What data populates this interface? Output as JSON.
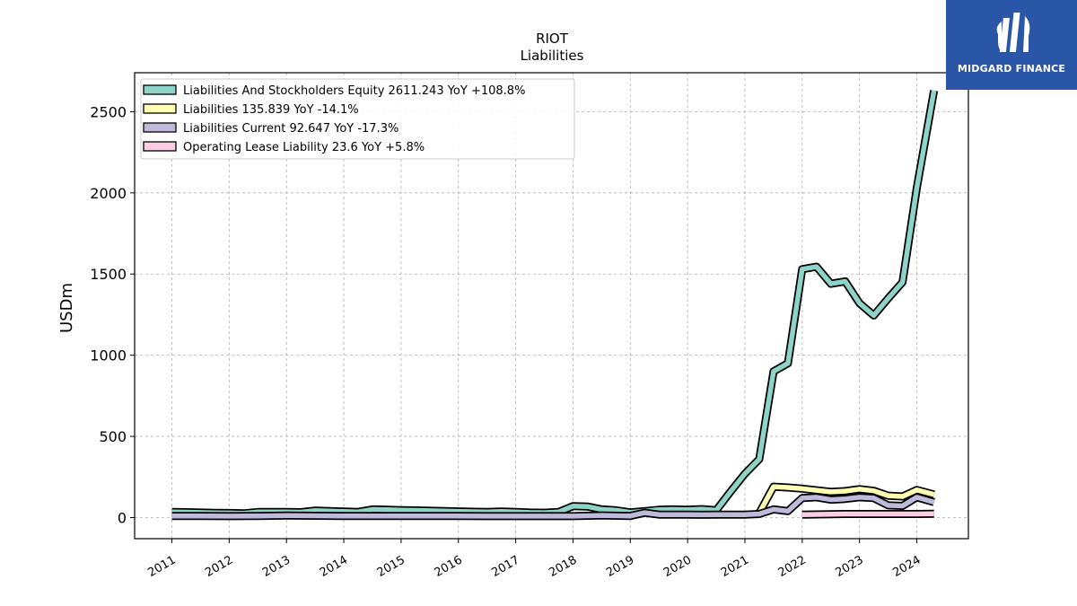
{
  "logo": {
    "text": "MIDGARD FINANCE"
  },
  "chart_data": {
    "type": "line",
    "title": "RIOT",
    "subtitle": "Liabilities",
    "ylabel": "USDm",
    "xlabel": "",
    "xlim": [
      2010.35,
      2024.9
    ],
    "ylim": [
      -130,
      2740
    ],
    "xticks": [
      "2011",
      "2012",
      "2013",
      "2014",
      "2015",
      "2016",
      "2017",
      "2018",
      "2019",
      "2020",
      "2021",
      "2022",
      "2023",
      "2024"
    ],
    "yticks": [
      "0",
      "500",
      "1000",
      "1500",
      "2000",
      "2500"
    ],
    "grid": true,
    "legend_position": "top-left",
    "series": [
      {
        "name": "Liabilities And Stockholders Equity",
        "legend": "Liabilities And Stockholders Equity  2611.243 YoY +108.8%",
        "color": "#8dd3c7",
        "points": [
          [
            2011.0,
            35
          ],
          [
            2011.25,
            33
          ],
          [
            2011.5,
            31
          ],
          [
            2011.75,
            29
          ],
          [
            2012.0,
            28
          ],
          [
            2012.25,
            26
          ],
          [
            2012.5,
            34
          ],
          [
            2012.75,
            34
          ],
          [
            2013.0,
            35
          ],
          [
            2013.25,
            33
          ],
          [
            2013.5,
            43
          ],
          [
            2013.75,
            40
          ],
          [
            2014.0,
            37
          ],
          [
            2014.25,
            35
          ],
          [
            2014.5,
            50
          ],
          [
            2014.75,
            48
          ],
          [
            2015.0,
            46
          ],
          [
            2015.25,
            44
          ],
          [
            2015.5,
            42
          ],
          [
            2015.75,
            40
          ],
          [
            2016.0,
            38
          ],
          [
            2016.25,
            36
          ],
          [
            2016.5,
            35
          ],
          [
            2016.75,
            37
          ],
          [
            2017.0,
            35
          ],
          [
            2017.25,
            31
          ],
          [
            2017.5,
            30
          ],
          [
            2017.75,
            34
          ],
          [
            2018.0,
            70
          ],
          [
            2018.25,
            68
          ],
          [
            2018.5,
            50
          ],
          [
            2018.75,
            45
          ],
          [
            2019.0,
            32
          ],
          [
            2019.25,
            40
          ],
          [
            2019.5,
            48
          ],
          [
            2019.75,
            50
          ],
          [
            2020.0,
            48
          ],
          [
            2020.25,
            52
          ],
          [
            2020.5,
            45
          ],
          [
            2020.75,
            160
          ],
          [
            2021.0,
            270
          ],
          [
            2021.25,
            360
          ],
          [
            2021.5,
            900
          ],
          [
            2021.75,
            950
          ],
          [
            2022.0,
            1530
          ],
          [
            2022.25,
            1545
          ],
          [
            2022.5,
            1440
          ],
          [
            2022.75,
            1455
          ],
          [
            2023.0,
            1320
          ],
          [
            2023.25,
            1245
          ],
          [
            2023.5,
            1350
          ],
          [
            2023.75,
            1450
          ],
          [
            2024.0,
            2030
          ],
          [
            2024.3,
            2630
          ]
        ]
      },
      {
        "name": "Liabilities",
        "legend": "Liabilities  135.839 YoY -14.1%",
        "color": "#ffffb3",
        "points": [
          [
            2021.25,
            28
          ],
          [
            2021.5,
            190
          ],
          [
            2021.75,
            185
          ],
          [
            2022.0,
            178
          ],
          [
            2022.25,
            168
          ],
          [
            2022.5,
            158
          ],
          [
            2022.75,
            163
          ],
          [
            2023.0,
            175
          ],
          [
            2023.25,
            165
          ],
          [
            2023.5,
            135
          ],
          [
            2023.75,
            130
          ],
          [
            2024.0,
            170
          ],
          [
            2024.3,
            142
          ]
        ]
      },
      {
        "name": "Liabilities Current",
        "legend": "Liabilities Current  92.647 YoY -17.3%",
        "color": "#bebada",
        "points": [
          [
            2011.0,
            10
          ],
          [
            2011.5,
            10
          ],
          [
            2012.0,
            9
          ],
          [
            2012.5,
            10
          ],
          [
            2013.0,
            12
          ],
          [
            2013.5,
            11
          ],
          [
            2014.0,
            10
          ],
          [
            2014.5,
            10
          ],
          [
            2015.0,
            10
          ],
          [
            2015.5,
            10
          ],
          [
            2016.0,
            10
          ],
          [
            2016.5,
            9
          ],
          [
            2017.0,
            9
          ],
          [
            2017.5,
            9
          ],
          [
            2018.0,
            9
          ],
          [
            2018.5,
            13
          ],
          [
            2019.0,
            10
          ],
          [
            2019.25,
            30
          ],
          [
            2019.5,
            18
          ],
          [
            2019.75,
            18
          ],
          [
            2020.0,
            18
          ],
          [
            2020.25,
            17
          ],
          [
            2020.5,
            18
          ],
          [
            2020.75,
            18
          ],
          [
            2021.0,
            18
          ],
          [
            2021.25,
            22
          ],
          [
            2021.5,
            50
          ],
          [
            2021.75,
            40
          ],
          [
            2022.0,
            120
          ],
          [
            2022.25,
            125
          ],
          [
            2022.5,
            110
          ],
          [
            2022.75,
            115
          ],
          [
            2023.0,
            125
          ],
          [
            2023.25,
            120
          ],
          [
            2023.5,
            75
          ],
          [
            2023.75,
            72
          ],
          [
            2024.0,
            125
          ],
          [
            2024.3,
            95
          ]
        ]
      },
      {
        "name": "Operating Lease Liability",
        "legend": "Operating Lease Liability  23.6 YoY +5.8%",
        "color": "#fccde5",
        "points": [
          [
            2022.0,
            18
          ],
          [
            2022.5,
            21
          ],
          [
            2022.75,
            22
          ],
          [
            2023.0,
            22
          ],
          [
            2023.5,
            22
          ],
          [
            2024.0,
            22
          ],
          [
            2024.3,
            24
          ]
        ]
      }
    ]
  }
}
